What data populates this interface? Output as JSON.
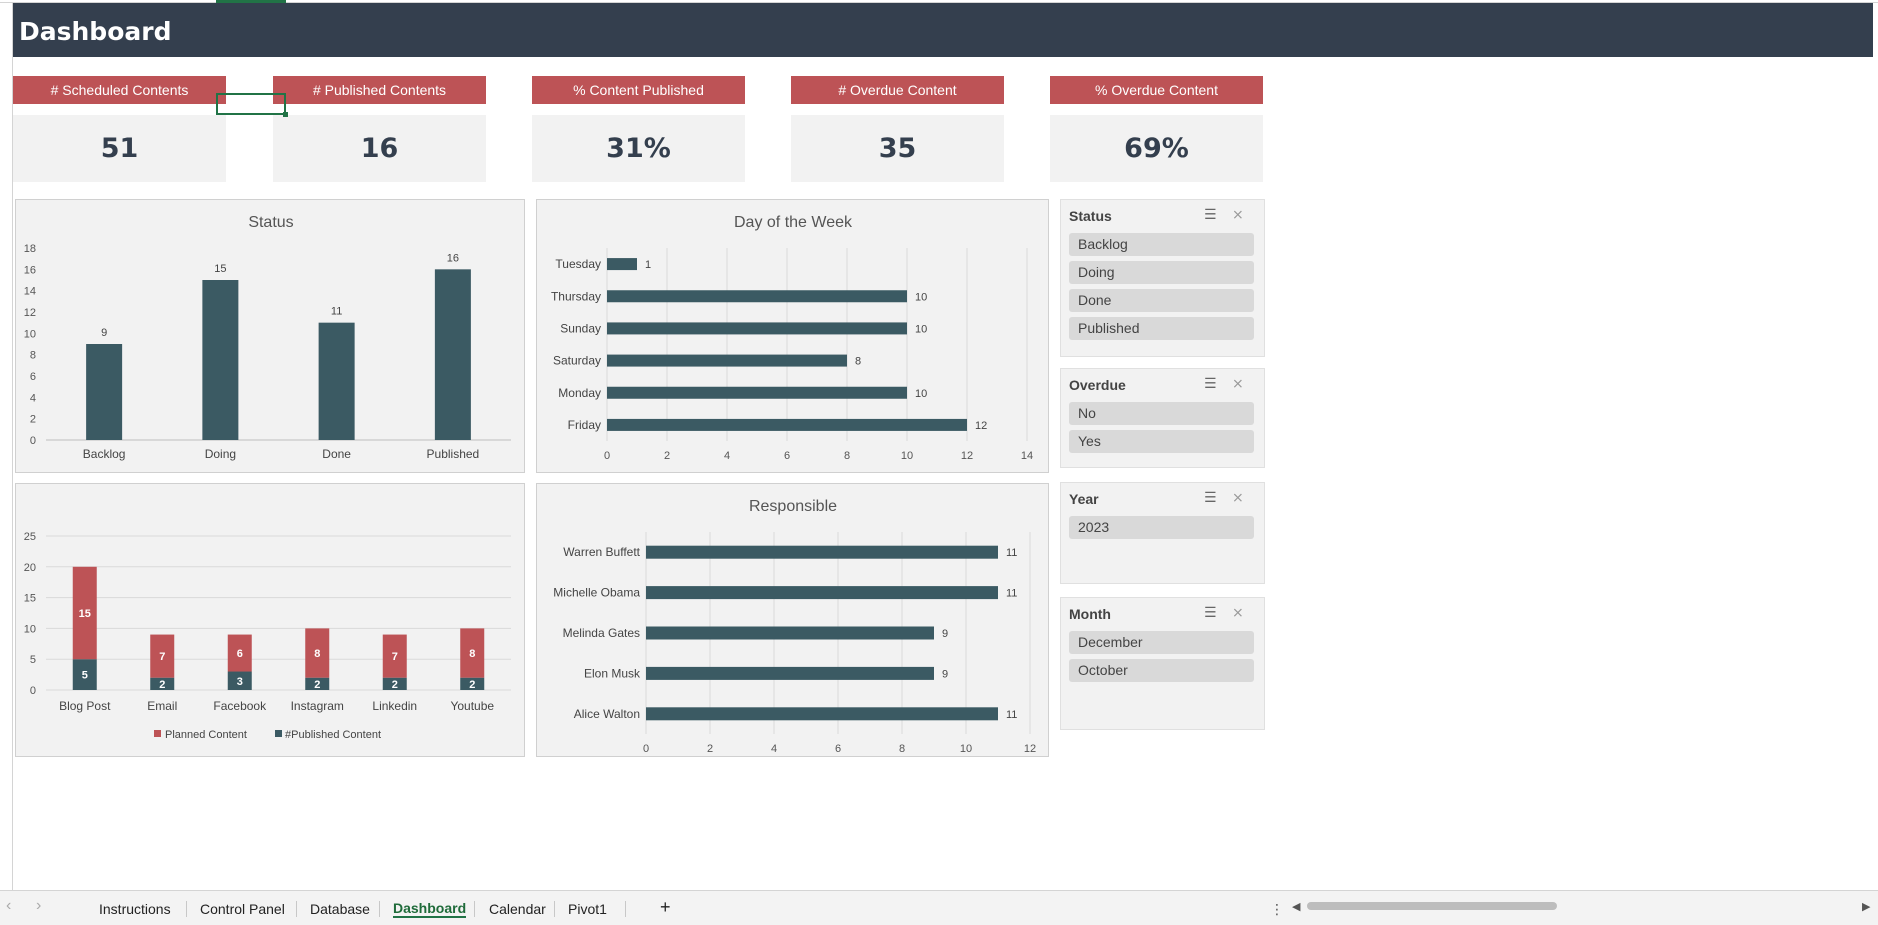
{
  "header": {
    "title": "Dashboard"
  },
  "kpis": [
    {
      "label": "# Scheduled Contents",
      "value": "51"
    },
    {
      "label": "# Published Contents",
      "value": "16"
    },
    {
      "label": "% Content Published",
      "value": "31%"
    },
    {
      "label": "# Overdue Content",
      "value": "35"
    },
    {
      "label": "% Overdue Content",
      "value": "69%"
    }
  ],
  "colors": {
    "bar": "#3b5a63",
    "planned": "#bd5356",
    "header": "#343f4e"
  },
  "chart_data": [
    {
      "type": "bar",
      "title": "Status",
      "categories": [
        "Backlog",
        "Doing",
        "Done",
        "Published"
      ],
      "values": [
        9,
        15,
        11,
        16
      ],
      "ylim": [
        0,
        18
      ],
      "yticks": [
        "0",
        "2",
        "4",
        "6",
        "8",
        "10",
        "12",
        "14",
        "16",
        "18"
      ],
      "grid": false
    },
    {
      "type": "bar",
      "orientation": "horizontal",
      "title": "Day of the Week",
      "categories": [
        "Tuesday",
        "Thursday",
        "Sunday",
        "Saturday",
        "Monday",
        "Friday"
      ],
      "values": [
        1,
        10,
        10,
        8,
        10,
        12
      ],
      "xlim": [
        0,
        14
      ],
      "xticks": [
        "0",
        "2",
        "4",
        "6",
        "8",
        "10",
        "12",
        "14"
      ],
      "grid": true
    },
    {
      "type": "bar",
      "stacked": true,
      "title": "",
      "categories": [
        "Blog Post",
        "Email",
        "Facebook",
        "Instagram",
        "Linkedin",
        "Youtube"
      ],
      "series": [
        {
          "name": "#Published Content",
          "values": [
            5,
            2,
            3,
            2,
            2,
            2
          ]
        },
        {
          "name": "Planned Content",
          "values": [
            15,
            7,
            6,
            8,
            7,
            8
          ]
        }
      ],
      "legend": [
        "Planned Content",
        "#Published Content"
      ],
      "legend_position": "bottom",
      "ylim": [
        0,
        25
      ],
      "yticks": [
        "0",
        "5",
        "10",
        "15",
        "20",
        "25"
      ],
      "grid": true
    },
    {
      "type": "bar",
      "orientation": "horizontal",
      "title": "Responsible",
      "categories": [
        "Warren Buffett",
        "Michelle Obama",
        "Melinda Gates",
        "Elon Musk",
        "Alice Walton"
      ],
      "values": [
        11,
        11,
        9,
        9,
        11
      ],
      "xlim": [
        0,
        12
      ],
      "xticks": [
        "0",
        "2",
        "4",
        "6",
        "8",
        "10",
        "12"
      ],
      "grid": true
    }
  ],
  "slicers": [
    {
      "title": "Status",
      "items": [
        "Backlog",
        "Doing",
        "Done",
        "Published"
      ]
    },
    {
      "title": "Overdue",
      "items": [
        "No",
        "Yes"
      ]
    },
    {
      "title": "Year",
      "items": [
        "2023"
      ]
    },
    {
      "title": "Month",
      "items": [
        "December",
        "October"
      ]
    }
  ],
  "slicer_icons": {
    "multi_select": "multi-select-icon",
    "clear_filter": "clear-filter-icon"
  },
  "tabs": [
    {
      "label": "Instructions",
      "active": false
    },
    {
      "label": "Control Panel",
      "active": false
    },
    {
      "label": "Database",
      "active": false
    },
    {
      "label": "Dashboard",
      "active": true
    },
    {
      "label": "Calendar",
      "active": false
    },
    {
      "label": "Pivot1",
      "active": false
    }
  ],
  "tabbar": {
    "add_label": "+",
    "more_label": "⋮"
  }
}
